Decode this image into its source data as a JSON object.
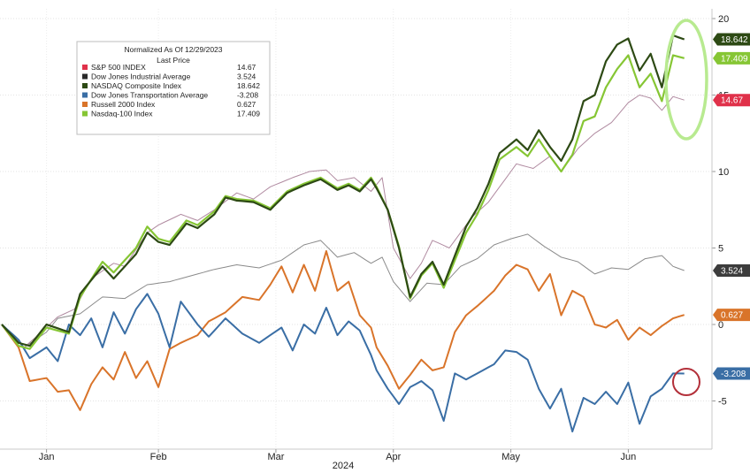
{
  "chart_data": {
    "type": "line",
    "title": "",
    "xlabel": "2024",
    "ylabel": "",
    "ylim": [
      -8,
      20
    ],
    "yticks": [
      -5,
      0,
      5,
      10,
      15,
      20
    ],
    "xticks": [
      {
        "label": "Jan",
        "index": 8
      },
      {
        "label": "Feb",
        "index": 28
      },
      {
        "label": "Mar",
        "index": 49
      },
      {
        "label": "Apr",
        "index": 70
      },
      {
        "label": "May",
        "index": 91
      },
      {
        "label": "Jun",
        "index": 112
      }
    ],
    "n_points": 124,
    "grid": true,
    "legend": {
      "position": "top-left",
      "header_line1": "Normalized As Of 12/29/2023",
      "header_line2": "Last Price"
    },
    "series": [
      {
        "name": "S&P 500 INDEX",
        "last": "14.67",
        "color": "#e0314a",
        "line_color": "#b08aa0",
        "width": 1,
        "end_label_color": "#e0314a",
        "keys": [
          [
            0,
            0
          ],
          [
            4,
            -1.5
          ],
          [
            8,
            -0.2
          ],
          [
            10,
            0.5
          ],
          [
            13,
            1
          ],
          [
            16,
            3
          ],
          [
            20,
            4
          ],
          [
            22,
            3.8
          ],
          [
            26,
            6
          ],
          [
            28,
            6.5
          ],
          [
            32,
            7.2
          ],
          [
            35,
            6.8
          ],
          [
            38,
            7.5
          ],
          [
            42,
            8.6
          ],
          [
            45,
            8.2
          ],
          [
            48,
            9
          ],
          [
            52,
            9.6
          ],
          [
            55,
            10
          ],
          [
            58,
            10.1
          ],
          [
            60,
            9.4
          ],
          [
            63,
            9.6
          ],
          [
            66,
            8.7
          ],
          [
            68,
            9.6
          ],
          [
            70,
            5
          ],
          [
            73,
            3
          ],
          [
            75,
            4
          ],
          [
            77,
            5.5
          ],
          [
            80,
            5
          ],
          [
            82,
            6
          ],
          [
            84,
            7
          ],
          [
            87,
            8
          ],
          [
            90,
            9.5
          ],
          [
            92,
            10.5
          ],
          [
            95,
            10.2
          ],
          [
            98,
            11
          ],
          [
            100,
            10
          ],
          [
            103,
            11.5
          ],
          [
            106,
            12.5
          ],
          [
            109,
            13.2
          ],
          [
            112,
            14.5
          ],
          [
            114,
            15
          ],
          [
            116,
            14.8
          ],
          [
            118,
            14
          ],
          [
            120,
            14.9
          ],
          [
            122,
            14.67
          ]
        ]
      },
      {
        "name": "Dow Jones Industrial Average",
        "last": "3.524",
        "color": "#2a2a2a",
        "line_color": "#8a8a8a",
        "width": 1,
        "end_label_color": "#3c3c3c",
        "keys": [
          [
            0,
            0
          ],
          [
            4,
            -1.5
          ],
          [
            8,
            -0.5
          ],
          [
            10,
            0.4
          ],
          [
            14,
            0.7
          ],
          [
            18,
            1.8
          ],
          [
            22,
            1.7
          ],
          [
            26,
            2.6
          ],
          [
            30,
            2.8
          ],
          [
            34,
            3.2
          ],
          [
            38,
            3.6
          ],
          [
            42,
            3.9
          ],
          [
            46,
            3.7
          ],
          [
            50,
            4.2
          ],
          [
            54,
            5.2
          ],
          [
            57,
            5.5
          ],
          [
            60,
            4.4
          ],
          [
            63,
            4.7
          ],
          [
            66,
            4
          ],
          [
            68,
            4.4
          ],
          [
            70,
            2.8
          ],
          [
            73,
            1.5
          ],
          [
            76,
            2.7
          ],
          [
            79,
            2.6
          ],
          [
            82,
            3.8
          ],
          [
            85,
            4.3
          ],
          [
            88,
            5.2
          ],
          [
            91,
            5.6
          ],
          [
            94,
            5.9
          ],
          [
            97,
            5.1
          ],
          [
            100,
            4.4
          ],
          [
            103,
            4.1
          ],
          [
            106,
            3.3
          ],
          [
            109,
            3.7
          ],
          [
            112,
            3.6
          ],
          [
            115,
            4.3
          ],
          [
            118,
            4.5
          ],
          [
            120,
            3.8
          ],
          [
            122,
            3.524
          ]
        ]
      },
      {
        "name": "NASDAQ Composite Index",
        "last": "18.642",
        "color": "#2d4a14",
        "line_color": "#2d4a14",
        "width": 2.2,
        "end_label_color": "#2d4a14",
        "keys": [
          [
            0,
            0
          ],
          [
            3,
            -1.2
          ],
          [
            5,
            -1.4
          ],
          [
            8,
            0
          ],
          [
            12,
            -0.5
          ],
          [
            14,
            2
          ],
          [
            18,
            3.8
          ],
          [
            20,
            3
          ],
          [
            24,
            4.6
          ],
          [
            26,
            6
          ],
          [
            28,
            5.4
          ],
          [
            30,
            5.2
          ],
          [
            33,
            6.6
          ],
          [
            35,
            6.3
          ],
          [
            38,
            7.2
          ],
          [
            40,
            8.3
          ],
          [
            42,
            8.1
          ],
          [
            45,
            8
          ],
          [
            48,
            7.5
          ],
          [
            51,
            8.6
          ],
          [
            54,
            9.1
          ],
          [
            57,
            9.5
          ],
          [
            60,
            8.8
          ],
          [
            62,
            9.1
          ],
          [
            64,
            8.7
          ],
          [
            66,
            9.5
          ],
          [
            67,
            8.9
          ],
          [
            69,
            7.5
          ],
          [
            71,
            5
          ],
          [
            73,
            1.8
          ],
          [
            75,
            3.3
          ],
          [
            77,
            4.1
          ],
          [
            79,
            2.6
          ],
          [
            81,
            4.5
          ],
          [
            83,
            6.4
          ],
          [
            85,
            7.6
          ],
          [
            87,
            9.2
          ],
          [
            89,
            11.2
          ],
          [
            92,
            12.1
          ],
          [
            94,
            11.4
          ],
          [
            96,
            12.7
          ],
          [
            98,
            11.6
          ],
          [
            100,
            10.7
          ],
          [
            102,
            12.1
          ],
          [
            104,
            14.6
          ],
          [
            106,
            15
          ],
          [
            108,
            17.2
          ],
          [
            110,
            18.3
          ],
          [
            112,
            18.7
          ],
          [
            114,
            16.6
          ],
          [
            116,
            17.7
          ],
          [
            118,
            15.5
          ],
          [
            120,
            18.9
          ],
          [
            122,
            18.642
          ]
        ]
      },
      {
        "name": "Dow Jones Transportation Average",
        "last": "-3.208",
        "color": "#3a6ea5",
        "line_color": "#3a6ea5",
        "width": 2,
        "end_label_color": "#3a6ea5",
        "keys": [
          [
            0,
            0
          ],
          [
            3,
            -1
          ],
          [
            5,
            -2.2
          ],
          [
            8,
            -1.5
          ],
          [
            10,
            -2.4
          ],
          [
            12,
            0
          ],
          [
            14,
            -0.7
          ],
          [
            16,
            0.4
          ],
          [
            18,
            -1.5
          ],
          [
            20,
            0.8
          ],
          [
            22,
            -0.6
          ],
          [
            24,
            1
          ],
          [
            26,
            2
          ],
          [
            28,
            0.7
          ],
          [
            30,
            -1.5
          ],
          [
            32,
            1.5
          ],
          [
            35,
            0
          ],
          [
            37,
            -0.8
          ],
          [
            40,
            0.4
          ],
          [
            43,
            -0.6
          ],
          [
            46,
            -1.2
          ],
          [
            48,
            -0.7
          ],
          [
            50,
            -0.2
          ],
          [
            52,
            -1.7
          ],
          [
            54,
            0
          ],
          [
            56,
            -0.6
          ],
          [
            58,
            1.1
          ],
          [
            60,
            -0.7
          ],
          [
            62,
            0.2
          ],
          [
            64,
            -0.4
          ],
          [
            66,
            -2
          ],
          [
            67,
            -3
          ],
          [
            69,
            -4.2
          ],
          [
            71,
            -5.2
          ],
          [
            73,
            -4.1
          ],
          [
            75,
            -3.7
          ],
          [
            77,
            -4.3
          ],
          [
            79,
            -6.3
          ],
          [
            81,
            -3.2
          ],
          [
            83,
            -3.6
          ],
          [
            85,
            -3.2
          ],
          [
            88,
            -2.6
          ],
          [
            90,
            -1.7
          ],
          [
            92,
            -1.8
          ],
          [
            94,
            -2.3
          ],
          [
            96,
            -4.2
          ],
          [
            98,
            -5.5
          ],
          [
            100,
            -4.2
          ],
          [
            102,
            -7
          ],
          [
            104,
            -4.8
          ],
          [
            106,
            -5.2
          ],
          [
            108,
            -4.4
          ],
          [
            110,
            -5.2
          ],
          [
            112,
            -3.8
          ],
          [
            114,
            -6.5
          ],
          [
            116,
            -4.7
          ],
          [
            118,
            -4.2
          ],
          [
            120,
            -3.2
          ],
          [
            122,
            -3.208
          ]
        ]
      },
      {
        "name": "Russell 2000 Index",
        "last": "0.627",
        "color": "#d9742a",
        "line_color": "#d9742a",
        "width": 2,
        "end_label_color": "#d9742a",
        "keys": [
          [
            0,
            0
          ],
          [
            3,
            -1.5
          ],
          [
            5,
            -3.7
          ],
          [
            8,
            -3.5
          ],
          [
            10,
            -4.4
          ],
          [
            12,
            -4.3
          ],
          [
            14,
            -5.6
          ],
          [
            16,
            -3.9
          ],
          [
            18,
            -2.8
          ],
          [
            20,
            -3.6
          ],
          [
            22,
            -1.8
          ],
          [
            24,
            -3.5
          ],
          [
            26,
            -2.4
          ],
          [
            28,
            -4.1
          ],
          [
            30,
            -1.6
          ],
          [
            32,
            -1.2
          ],
          [
            35,
            -0.7
          ],
          [
            37,
            0.2
          ],
          [
            40,
            0.8
          ],
          [
            43,
            1.8
          ],
          [
            46,
            1.6
          ],
          [
            48,
            2.6
          ],
          [
            50,
            3.8
          ],
          [
            52,
            2.1
          ],
          [
            54,
            3.9
          ],
          [
            56,
            2.2
          ],
          [
            58,
            4.8
          ],
          [
            60,
            2.2
          ],
          [
            62,
            2.8
          ],
          [
            64,
            0.6
          ],
          [
            66,
            -0.2
          ],
          [
            67,
            -1.5
          ],
          [
            69,
            -2.7
          ],
          [
            71,
            -4.2
          ],
          [
            73,
            -3.3
          ],
          [
            75,
            -2.3
          ],
          [
            77,
            -3
          ],
          [
            79,
            -2.8
          ],
          [
            81,
            -0.5
          ],
          [
            83,
            0.6
          ],
          [
            85,
            1.2
          ],
          [
            88,
            2.2
          ],
          [
            90,
            3.2
          ],
          [
            92,
            3.9
          ],
          [
            94,
            3.6
          ],
          [
            96,
            2.2
          ],
          [
            98,
            3.3
          ],
          [
            100,
            0.6
          ],
          [
            102,
            2.2
          ],
          [
            104,
            1.8
          ],
          [
            106,
            0
          ],
          [
            108,
            -0.2
          ],
          [
            110,
            0.3
          ],
          [
            112,
            -1
          ],
          [
            114,
            -0.2
          ],
          [
            116,
            -0.7
          ],
          [
            118,
            -0.1
          ],
          [
            120,
            0.4
          ],
          [
            122,
            0.627
          ]
        ]
      },
      {
        "name": "Nasdaq-100 Index",
        "last": "17.409",
        "color": "#86c634",
        "line_color": "#86c634",
        "width": 2.2,
        "end_label_color": "#86c634",
        "keys": [
          [
            0,
            0
          ],
          [
            3,
            -1.4
          ],
          [
            5,
            -1.6
          ],
          [
            8,
            -0.2
          ],
          [
            12,
            -0.6
          ],
          [
            14,
            1.8
          ],
          [
            18,
            4.1
          ],
          [
            20,
            3.4
          ],
          [
            24,
            5
          ],
          [
            26,
            6.4
          ],
          [
            28,
            5.6
          ],
          [
            30,
            5.4
          ],
          [
            33,
            6.8
          ],
          [
            35,
            6.5
          ],
          [
            38,
            7.4
          ],
          [
            40,
            8.4
          ],
          [
            42,
            8.2
          ],
          [
            45,
            8.1
          ],
          [
            48,
            7.6
          ],
          [
            51,
            8.7
          ],
          [
            54,
            9.2
          ],
          [
            57,
            9.6
          ],
          [
            60,
            8.9
          ],
          [
            62,
            9.2
          ],
          [
            64,
            8.8
          ],
          [
            66,
            9.6
          ],
          [
            67,
            9
          ],
          [
            69,
            7.5
          ],
          [
            71,
            5.1
          ],
          [
            73,
            1.7
          ],
          [
            75,
            3.2
          ],
          [
            77,
            4
          ],
          [
            79,
            2.4
          ],
          [
            81,
            4.2
          ],
          [
            83,
            6
          ],
          [
            85,
            7.2
          ],
          [
            87,
            8.8
          ],
          [
            89,
            10.8
          ],
          [
            92,
            11.6
          ],
          [
            94,
            11
          ],
          [
            96,
            12.1
          ],
          [
            98,
            11
          ],
          [
            100,
            10
          ],
          [
            102,
            11.1
          ],
          [
            104,
            13.3
          ],
          [
            106,
            13.6
          ],
          [
            108,
            15.5
          ],
          [
            110,
            16.7
          ],
          [
            112,
            17.6
          ],
          [
            114,
            15.5
          ],
          [
            116,
            16.4
          ],
          [
            118,
            14.6
          ],
          [
            120,
            17.6
          ],
          [
            122,
            17.409
          ]
        ]
      }
    ]
  }
}
